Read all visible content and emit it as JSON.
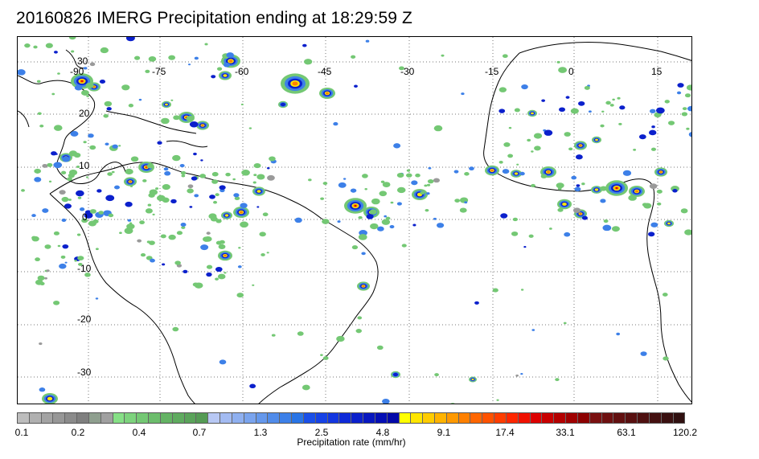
{
  "title": "20160826 IMERG Precipitation ending at 18:29:59 Z",
  "map": {
    "lon_labels": [
      "-90",
      "-75",
      "-60",
      "-45",
      "-30",
      "-15",
      "0",
      "15"
    ],
    "lat_labels": [
      "30",
      "20",
      "10",
      "0",
      "-10",
      "-20",
      "-30"
    ],
    "colors": {
      "land_outline": "#000000",
      "gridline": "#777777"
    }
  },
  "colorbar": {
    "caption": "Precipitation rate (mm/hr)",
    "tick_labels": [
      "0.1",
      "0.2",
      "0.4",
      "0.7",
      "1.3",
      "2.5",
      "4.8",
      "9.1",
      "17.4",
      "33.1",
      "63.1",
      "120.2"
    ],
    "colors": [
      "#bdbdbd",
      "#b0b0b0",
      "#a3a3a3",
      "#979797",
      "#8b8b8b",
      "#7f7f7f",
      "#8f9f8f",
      "#a0a0a0",
      "#86e086",
      "#7dd37d",
      "#74c874",
      "#6cbd6c",
      "#64b364",
      "#5fab5f",
      "#5aa35a",
      "#559b55",
      "#b8c8f4",
      "#a3bbf2",
      "#8fb0f0",
      "#7aa4ee",
      "#6598ec",
      "#518cea",
      "#3d80e8",
      "#2874e6",
      "#1a4fe8",
      "#1642e6",
      "#1236e0",
      "#0e2ad8",
      "#0b20cc",
      "#0817c0",
      "#050fb5",
      "#0309a8",
      "#ffff00",
      "#ffe600",
      "#ffcc00",
      "#ffb300",
      "#ff9900",
      "#ff8000",
      "#ff6600",
      "#ff5200",
      "#ff3d00",
      "#ff2600",
      "#f01000",
      "#dc0000",
      "#c80000",
      "#b40000",
      "#a00000",
      "#8c0000",
      "#7a1010",
      "#6e1010",
      "#621010",
      "#581010",
      "#4e1010",
      "#441010",
      "#3a1010",
      "#301010"
    ]
  },
  "precip_palette": {
    "light_green": "#74c874",
    "med_blue": "#3d80e8",
    "dark_blue": "#0b20cc",
    "yellow": "#ffe600",
    "orange": "#ff8000",
    "red": "#dc0000",
    "dark_red": "#7a1010",
    "grey": "#9a9a9a"
  }
}
